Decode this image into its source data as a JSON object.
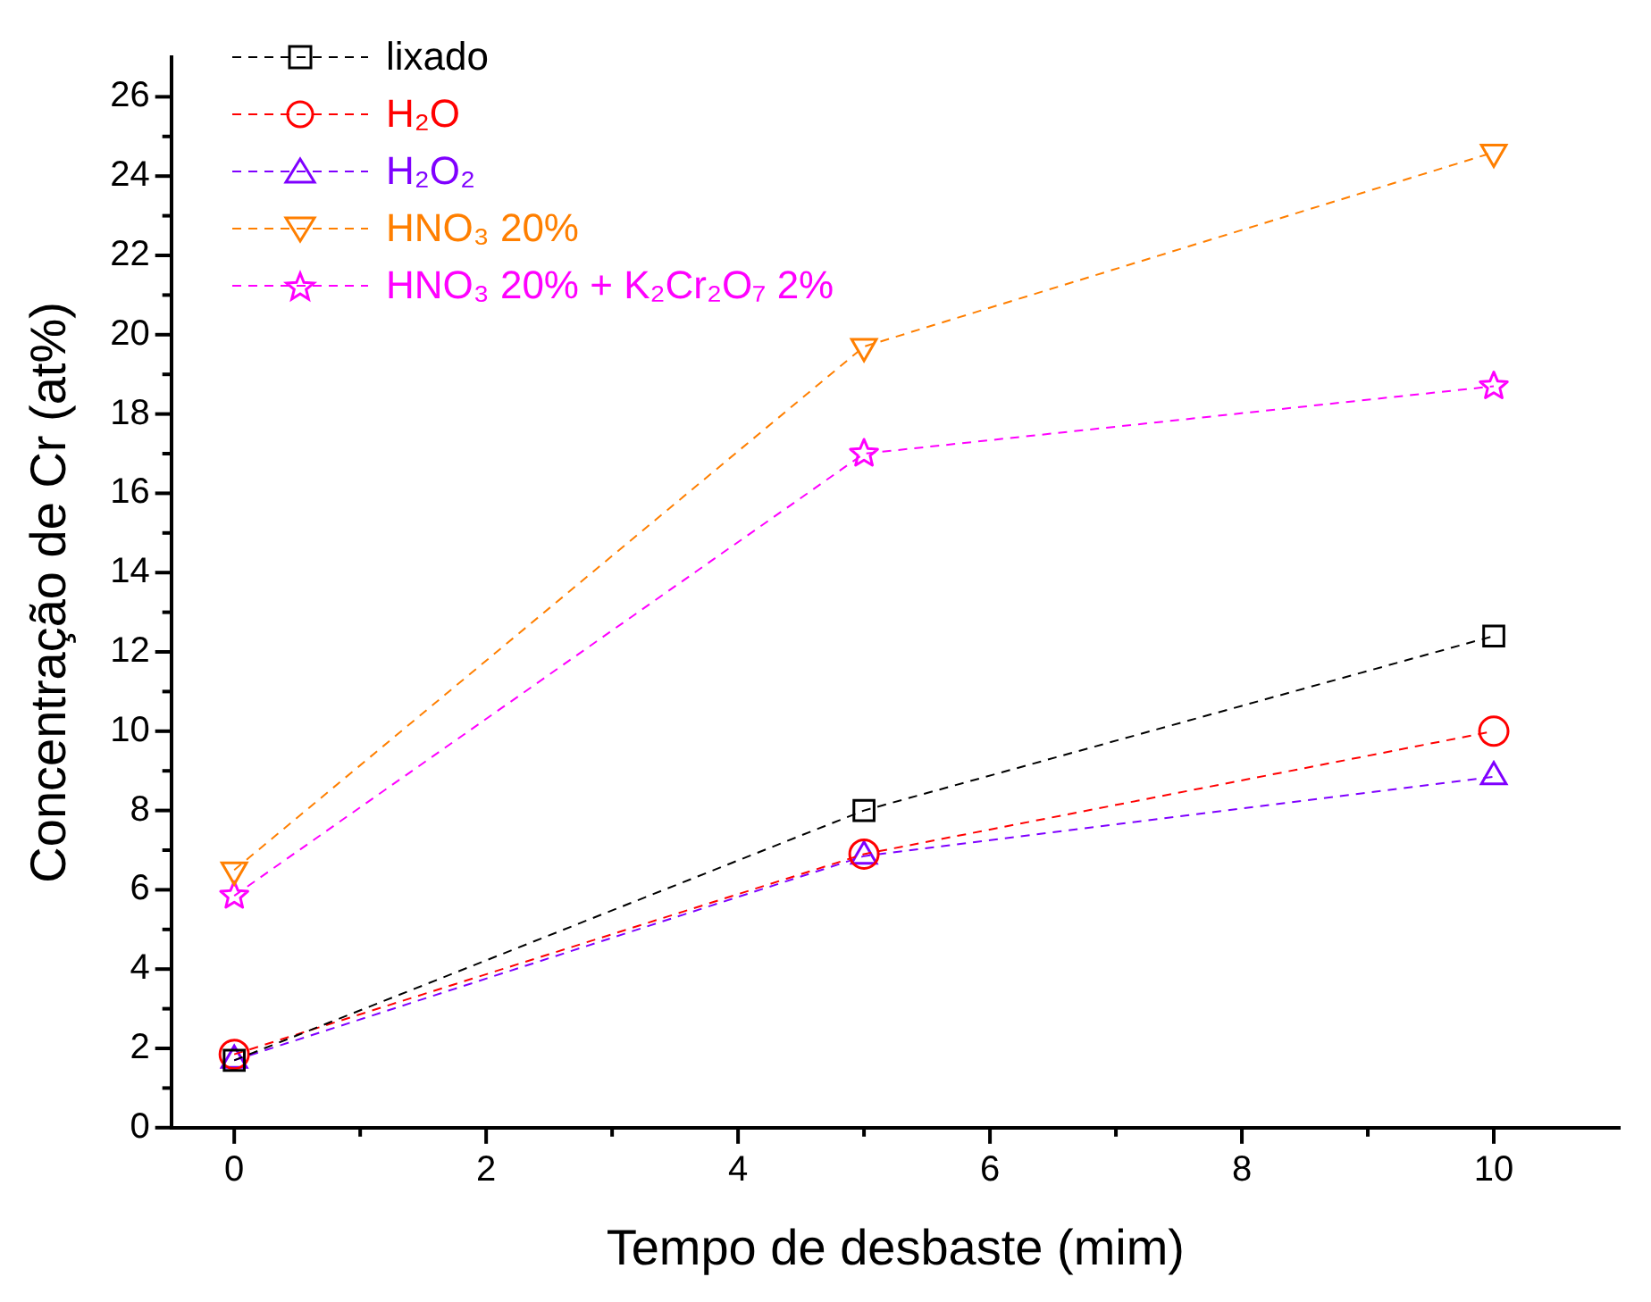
{
  "chart_data": {
    "type": "line",
    "xlabel": "Tempo de desbaste (mim)",
    "ylabel": "Concentração de Cr (at%)",
    "x": [
      0,
      5,
      10
    ],
    "series": [
      {
        "name": "lixado",
        "color": "#000000",
        "marker": "square",
        "values": [
          1.7,
          8.0,
          12.4
        ]
      },
      {
        "name": "H₂O",
        "color": "#ff0000",
        "marker": "circle",
        "values": [
          1.85,
          6.9,
          10.0
        ]
      },
      {
        "name": "H₂O₂",
        "color": "#7f00ff",
        "marker": "triangle",
        "values": [
          1.7,
          6.85,
          8.85
        ]
      },
      {
        "name": "HNO₃ 20%",
        "color": "#ff7f00",
        "marker": "triangle_down",
        "values": [
          6.5,
          19.7,
          24.6
        ]
      },
      {
        "name": "HNO₃ 20% + K₂Cr₂O₇ 2%",
        "color": "#ff00ff",
        "marker": "star",
        "values": [
          5.85,
          17.0,
          18.7
        ]
      }
    ],
    "xlim": [
      -0.5,
      11
    ],
    "xticks": [
      0,
      {
        "value": 1,
        "label": null
      },
      2,
      {
        "value": 3,
        "label": null
      },
      4,
      {
        "value": 5,
        "label": null
      },
      6,
      {
        "value": 7,
        "label": null
      },
      8,
      {
        "value": 9,
        "label": null
      },
      10
    ],
    "ylim": [
      0,
      27
    ],
    "yticks": [
      0,
      {
        "value": 1,
        "label": null
      },
      2,
      {
        "value": 3,
        "label": null
      },
      4,
      {
        "value": 5,
        "label": null
      },
      6,
      {
        "value": 7,
        "label": null
      },
      8,
      {
        "value": 9,
        "label": null
      },
      10,
      {
        "value": 11,
        "label": null
      },
      12,
      {
        "value": 13,
        "label": null
      },
      14,
      {
        "value": 15,
        "label": null
      },
      16,
      {
        "value": 17,
        "label": null
      },
      18,
      {
        "value": 19,
        "label": null
      },
      20,
      {
        "value": 21,
        "label": null
      },
      22,
      {
        "value": 23,
        "label": null
      },
      24,
      {
        "value": 25,
        "label": null
      },
      26
    ],
    "grid": false,
    "legend": "top left",
    "line_style": "dashed"
  }
}
